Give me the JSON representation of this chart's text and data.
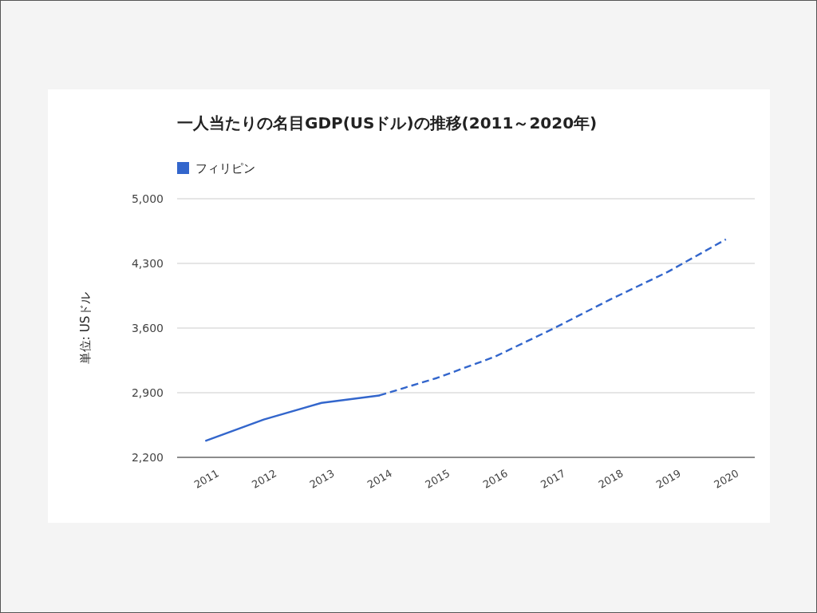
{
  "chart_data": {
    "type": "line",
    "title": "一人当たりの名目GDP(USドル)の推移(2011～2020年)",
    "ylabel": "単位: USドル",
    "categories": [
      "2011",
      "2012",
      "2013",
      "2014",
      "2015",
      "2016",
      "2017",
      "2018",
      "2019",
      "2020"
    ],
    "series": [
      {
        "name": "フィリピン",
        "color": "#3366cc",
        "line_style": "solid",
        "values": [
          2380,
          2610,
          2790,
          2870,
          null,
          null,
          null,
          null,
          null,
          null
        ]
      },
      {
        "color": "#3366cc",
        "line_style": "dashed",
        "values": [
          null,
          null,
          null,
          2870,
          3060,
          3290,
          3590,
          3910,
          4210,
          4560
        ]
      }
    ],
    "ylim": [
      2200,
      5000
    ],
    "yticks": [
      {
        "value": 2200,
        "label": "2,200"
      },
      {
        "value": 2900,
        "label": "2,900"
      },
      {
        "value": 3600,
        "label": "3,600"
      },
      {
        "value": 4300,
        "label": "4,300"
      },
      {
        "value": 5000,
        "label": "5,000"
      }
    ],
    "grid": "y",
    "legend": "top left"
  }
}
